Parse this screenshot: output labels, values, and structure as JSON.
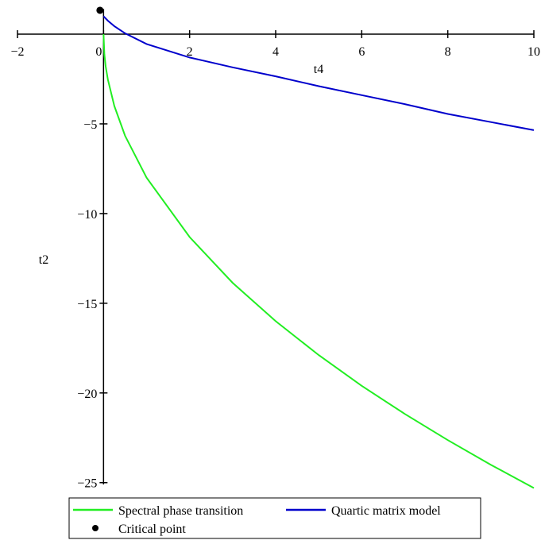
{
  "chart_data": {
    "type": "line",
    "xlabel": "t4",
    "ylabel": "t2",
    "xlim": [
      -2,
      10
    ],
    "ylim": [
      -25.1,
      1.4
    ],
    "xticks": [
      {
        "value": -2,
        "label": "−2"
      },
      0,
      2,
      4,
      6,
      8,
      10
    ],
    "yticks": [
      {
        "value": -5,
        "label": "−5"
      },
      {
        "value": -10,
        "label": "−10"
      },
      {
        "value": -15,
        "label": "−15"
      },
      {
        "value": -20,
        "label": "−20"
      },
      {
        "value": -25,
        "label": "−25"
      }
    ],
    "series": [
      {
        "name": "Spectral phase transition",
        "color": "#22ee22",
        "kind": "line",
        "x": [
          0,
          0.02,
          0.05,
          0.1,
          0.25,
          0.5,
          1,
          2,
          3,
          4,
          5,
          6,
          7,
          8,
          9,
          10
        ],
        "values": [
          0,
          -1.13,
          -1.79,
          -2.53,
          -4,
          -5.66,
          -8,
          -11.31,
          -13.86,
          -16,
          -17.89,
          -19.6,
          -21.17,
          -22.63,
          -24,
          -25.3
        ]
      },
      {
        "name": "Quartic matrix model",
        "color": "#0000cc",
        "kind": "line",
        "x": [
          0,
          0.1,
          0.25,
          0.5,
          1,
          2,
          3,
          4,
          5,
          6,
          7,
          8,
          9,
          10
        ],
        "values": [
          1.0,
          0.75,
          0.45,
          0.05,
          -0.55,
          -1.3,
          -1.85,
          -2.35,
          -2.9,
          -3.4,
          -3.9,
          -4.45,
          -4.9,
          -5.35
        ]
      },
      {
        "name": "Critical point",
        "color": "#000000",
        "kind": "point",
        "x": [
          -0.083
        ],
        "values": [
          1.33
        ]
      }
    ]
  }
}
